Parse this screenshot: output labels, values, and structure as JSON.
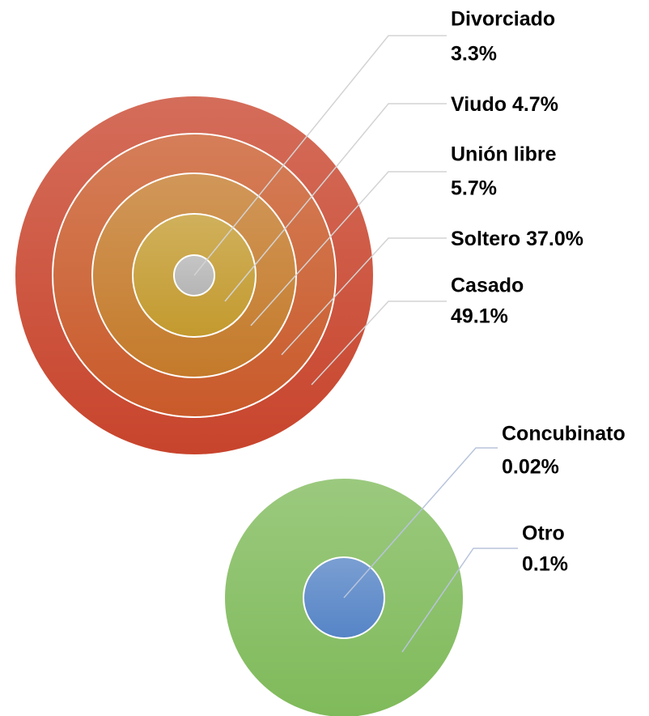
{
  "chart_data": [
    {
      "type": "concentric",
      "categories": [
        "Divorciado",
        "Viudo",
        "Unión libre",
        "Soltero",
        "Casado"
      ],
      "values": [
        3.3,
        4.7,
        5.7,
        37.0,
        49.1
      ],
      "value_labels": [
        "3.3%",
        "4.7%",
        "5.7%",
        "37.0%",
        "49.1%"
      ],
      "colors": [
        "#b5b5b5",
        "#c39a2e",
        "#c47a2a",
        "#c95a2a",
        "#c8442c"
      ]
    },
    {
      "type": "concentric",
      "categories": [
        "Concubinato",
        "Otro"
      ],
      "values": [
        0.02,
        0.1
      ],
      "value_labels": [
        "0.02%",
        "0.1%"
      ],
      "colors": [
        "#5584c6",
        "#7fba5a"
      ]
    }
  ]
}
